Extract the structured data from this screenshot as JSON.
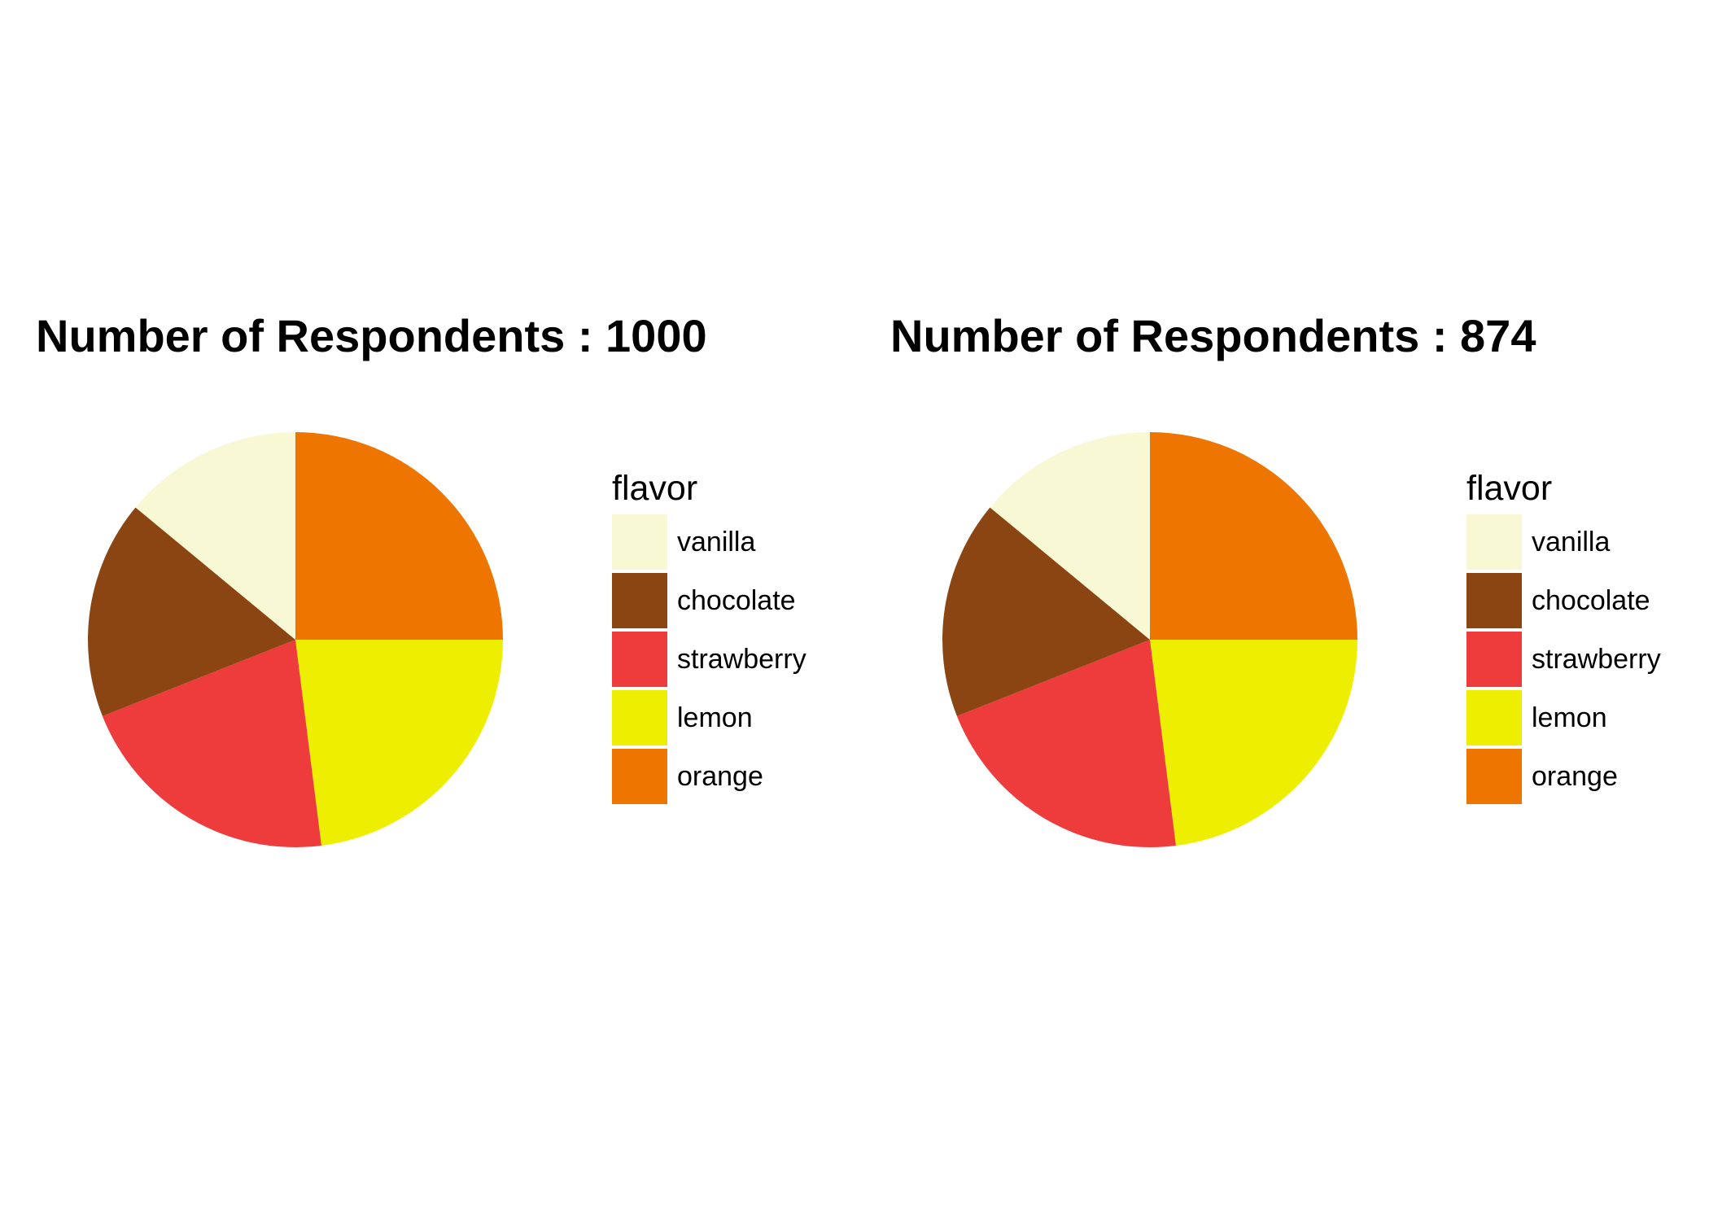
{
  "chart_data": [
    {
      "type": "pie",
      "title": "Number of Respondents : 1000",
      "legend_title": "flavor",
      "legend_position": "right",
      "start": "12 o'clock, clockwise, starting with orange",
      "slices": [
        {
          "label": "orange",
          "value": 25.0,
          "color": "#EE7600"
        },
        {
          "label": "lemon",
          "value": 23.0,
          "color": "#EEEE00"
        },
        {
          "label": "strawberry",
          "value": 21.0,
          "color": "#EE3B3B"
        },
        {
          "label": "chocolate",
          "value": 17.0,
          "color": "#8B4513"
        },
        {
          "label": "vanilla",
          "value": 14.0,
          "color": "#F8F8D4"
        }
      ],
      "legend_order": [
        "vanilla",
        "chocolate",
        "strawberry",
        "lemon",
        "orange"
      ]
    },
    {
      "type": "pie",
      "title": "Number of Respondents : 874",
      "legend_title": "flavor",
      "legend_position": "right",
      "start": "12 o'clock, clockwise, starting with orange",
      "slices": [
        {
          "label": "orange",
          "value": 25.0,
          "color": "#EE7600"
        },
        {
          "label": "lemon",
          "value": 23.0,
          "color": "#EEEE00"
        },
        {
          "label": "strawberry",
          "value": 21.0,
          "color": "#EE3B3B"
        },
        {
          "label": "chocolate",
          "value": 17.0,
          "color": "#8B4513"
        },
        {
          "label": "vanilla",
          "value": 14.0,
          "color": "#F8F8D4"
        }
      ],
      "legend_order": [
        "vanilla",
        "chocolate",
        "strawberry",
        "lemon",
        "orange"
      ]
    }
  ]
}
